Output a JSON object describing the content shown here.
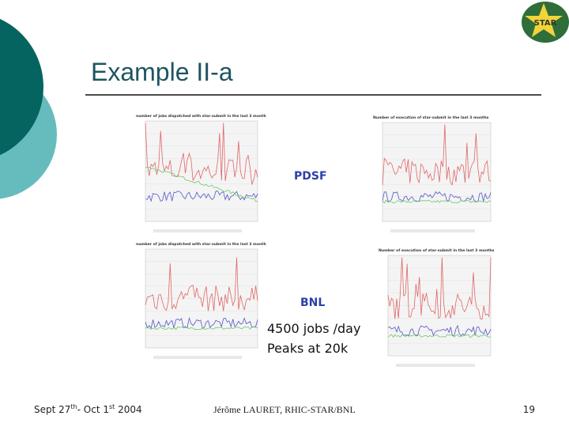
{
  "slide": {
    "title": "Example II-a",
    "logo": "STAR",
    "charts": [
      {
        "title": "number of jobs dispatched with star-submit in the last 3 month"
      },
      {
        "title": "Number of execution of star-submit in the last 3 months"
      },
      {
        "title": "number of jobs dispatched with star-submit in the last 3 month"
      },
      {
        "title": "Number of execution of star-submit in the last 3 months"
      }
    ],
    "labels": [
      "PDSF",
      "BNL"
    ],
    "notes": [
      "4500 jobs /day",
      "Peaks at 20k"
    ],
    "footer": {
      "date_parts": [
        "Sept 27",
        "th",
        "- Oct 1",
        "st",
        " 2004"
      ],
      "author": "Jérôme LAURET, RHIC-STAR/BNL",
      "page": "19"
    }
  }
}
